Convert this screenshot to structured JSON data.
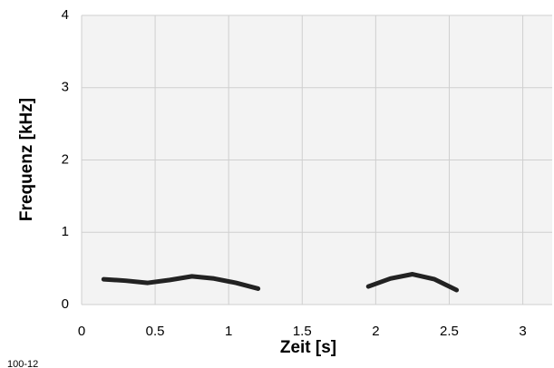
{
  "chart_data": {
    "type": "line",
    "xlabel": "Zeit [s]",
    "ylabel": "Frequenz [kHz]",
    "caption": "100-12",
    "xlim": [
      0,
      3.2
    ],
    "ylim": [
      0,
      4
    ],
    "xticks": [
      0,
      0.5,
      1,
      1.5,
      2,
      2.5,
      3
    ],
    "yticks": [
      0,
      1,
      2,
      3,
      4
    ],
    "grid": true,
    "x": [
      0.15,
      0.3,
      0.45,
      0.6,
      0.75,
      0.9,
      1.05,
      1.2,
      1.6,
      1.95,
      2.1,
      2.25,
      2.4,
      2.55
    ],
    "series": [
      {
        "color": "#222222",
        "values": [
          0.35,
          0.33,
          0.3,
          0.34,
          0.39,
          0.36,
          0.3,
          0.22,
          null,
          0.25,
          0.36,
          0.42,
          0.35,
          0.2
        ]
      }
    ]
  }
}
